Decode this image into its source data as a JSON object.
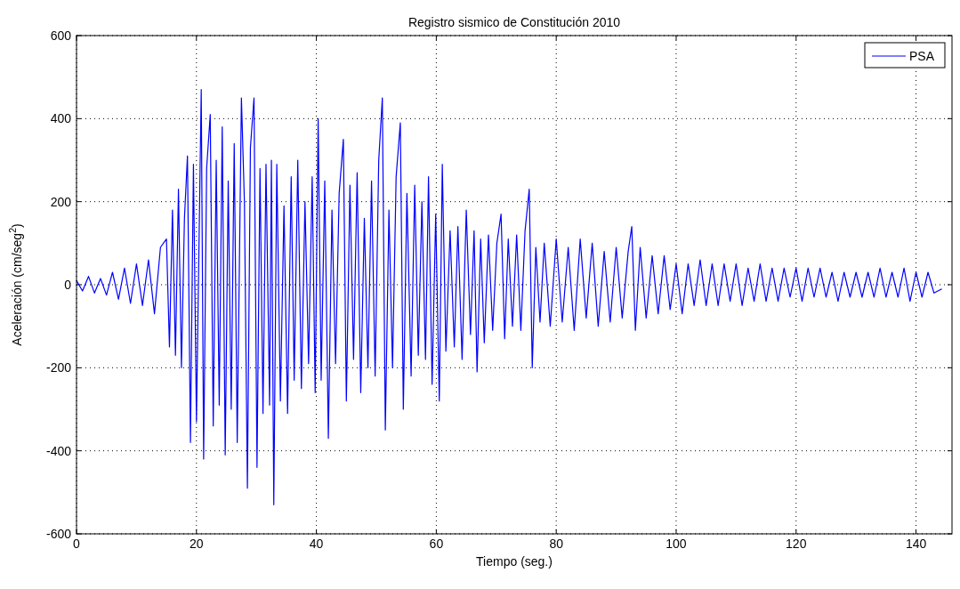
{
  "chart_data": {
    "type": "line",
    "title": "Registro sismico de Constitución 2010",
    "xlabel": "Tiempo (seg.)",
    "ylabel": "Aceleración (cm/seg$^{2}$)",
    "xlim": [
      0,
      146
    ],
    "xticks": [
      0,
      20,
      40,
      60,
      80,
      100,
      120,
      140
    ],
    "ylim": [
      -600,
      600
    ],
    "yticks": [
      -600,
      -400,
      -200,
      0,
      200,
      400,
      600
    ],
    "grid": true,
    "legend": "top right",
    "line_style": "solid",
    "x": [
      0,
      1,
      2,
      3,
      4,
      5,
      6,
      7,
      8,
      9,
      10,
      11,
      12,
      13,
      14,
      15,
      15.5,
      16,
      16.5,
      17,
      17.5,
      18,
      18.5,
      19,
      19.5,
      20,
      20.8,
      21.2,
      21.7,
      22.3,
      22.8,
      23.3,
      23.8,
      24.3,
      24.8,
      25.3,
      25.8,
      26.3,
      26.8,
      27.5,
      28,
      28.5,
      29,
      29.6,
      30.1,
      30.6,
      31.1,
      31.6,
      32.2,
      32.5,
      32.9,
      33.4,
      34,
      34.6,
      35.2,
      35.8,
      36.3,
      36.9,
      37.5,
      38.1,
      38.7,
      39.3,
      39.8,
      40.3,
      40.8,
      41.4,
      42,
      42.6,
      43.2,
      43.8,
      44.5,
      45,
      45.6,
      46.2,
      46.8,
      47.4,
      48,
      48.6,
      49.2,
      49.8,
      50.4,
      51,
      51.5,
      52.1,
      52.7,
      53.3,
      54,
      54.5,
      55.1,
      55.8,
      56.4,
      57,
      57.6,
      58.2,
      58.7,
      59.3,
      59.9,
      60.5,
      61,
      61.6,
      62.3,
      63,
      63.6,
      64.3,
      65,
      65.7,
      66.3,
      66.8,
      67.4,
      68,
      68.7,
      69.4,
      70.1,
      70.8,
      71.4,
      72,
      72.7,
      73.4,
      74.1,
      74.8,
      75.5,
      76,
      76.6,
      77.3,
      78,
      79,
      80,
      81,
      82,
      83,
      84,
      85,
      86,
      87,
      88,
      89,
      90,
      91,
      92,
      92.6,
      93.2,
      94,
      95,
      96,
      97,
      98,
      99,
      100,
      101,
      102,
      103,
      104,
      105,
      106,
      107,
      108,
      109,
      110,
      111,
      112,
      113,
      114,
      115,
      116,
      117,
      118,
      119,
      120,
      121,
      122,
      123,
      124,
      125,
      126,
      127,
      128,
      129,
      130,
      131,
      132,
      133,
      134,
      135,
      136,
      137,
      138,
      139,
      140,
      141,
      142,
      143,
      144.3
    ],
    "series": [
      {
        "name": "PSA",
        "color": "#0000ff",
        "values": [
          10,
          -15,
          20,
          -20,
          15,
          -25,
          30,
          -35,
          40,
          -45,
          50,
          -50,
          60,
          -70,
          90,
          110,
          -150,
          180,
          -170,
          230,
          -200,
          160,
          310,
          -380,
          290,
          -330,
          470,
          -420,
          280,
          410,
          -340,
          300,
          -290,
          380,
          -410,
          250,
          -300,
          340,
          -380,
          450,
          200,
          -490,
          330,
          450,
          -440,
          280,
          -310,
          290,
          -290,
          300,
          -530,
          290,
          -280,
          190,
          -310,
          260,
          -230,
          300,
          -250,
          200,
          -190,
          260,
          -260,
          400,
          -230,
          250,
          -370,
          180,
          -190,
          220,
          350,
          -280,
          240,
          -180,
          270,
          -260,
          160,
          -200,
          250,
          -220,
          300,
          450,
          -350,
          180,
          -200,
          260,
          390,
          -300,
          220,
          -220,
          240,
          -170,
          200,
          -180,
          260,
          -240,
          170,
          -280,
          290,
          -160,
          130,
          -150,
          140,
          -180,
          180,
          -120,
          130,
          -210,
          110,
          -140,
          120,
          -110,
          100,
          170,
          -130,
          110,
          -100,
          120,
          -110,
          130,
          230,
          -200,
          90,
          -90,
          100,
          -100,
          110,
          -90,
          90,
          -110,
          110,
          -80,
          100,
          -100,
          80,
          -90,
          90,
          -80,
          80,
          140,
          -110,
          90,
          -80,
          70,
          -70,
          70,
          -60,
          50,
          -70,
          50,
          -50,
          60,
          -50,
          50,
          -50,
          50,
          -40,
          50,
          -50,
          40,
          -40,
          50,
          -40,
          40,
          -40,
          40,
          -30,
          40,
          -40,
          40,
          -30,
          40,
          -30,
          30,
          -40,
          30,
          -30,
          30,
          -30,
          30,
          -30,
          40,
          -30,
          30,
          -30,
          40,
          -40,
          30,
          -30,
          30,
          -20,
          -10
        ]
      }
    ]
  }
}
